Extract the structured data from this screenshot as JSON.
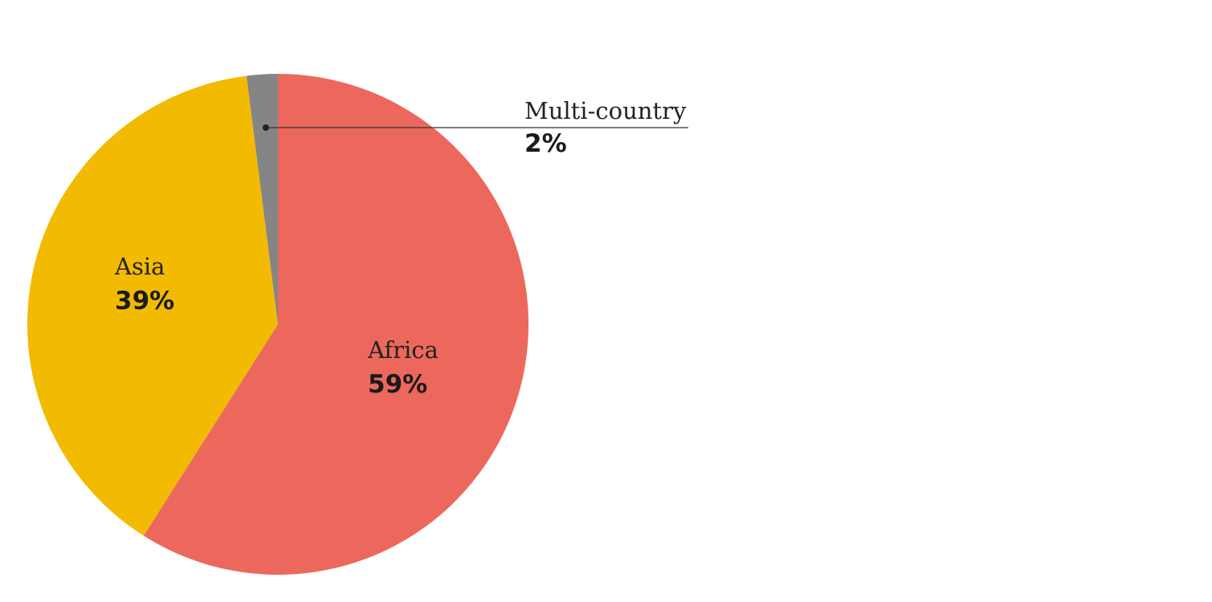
{
  "chart_data": {
    "type": "pie",
    "start": "top",
    "direction": "clockwise",
    "slices": [
      {
        "label": "Africa",
        "value": 59,
        "value_label": "59%",
        "color": "#ED685C"
      },
      {
        "label": "Asia",
        "value": 39,
        "value_label": "39%",
        "color": "#F2BA00"
      },
      {
        "label": "Multi-country",
        "value": 2,
        "value_label": "2%",
        "color": "#858585"
      }
    ]
  }
}
